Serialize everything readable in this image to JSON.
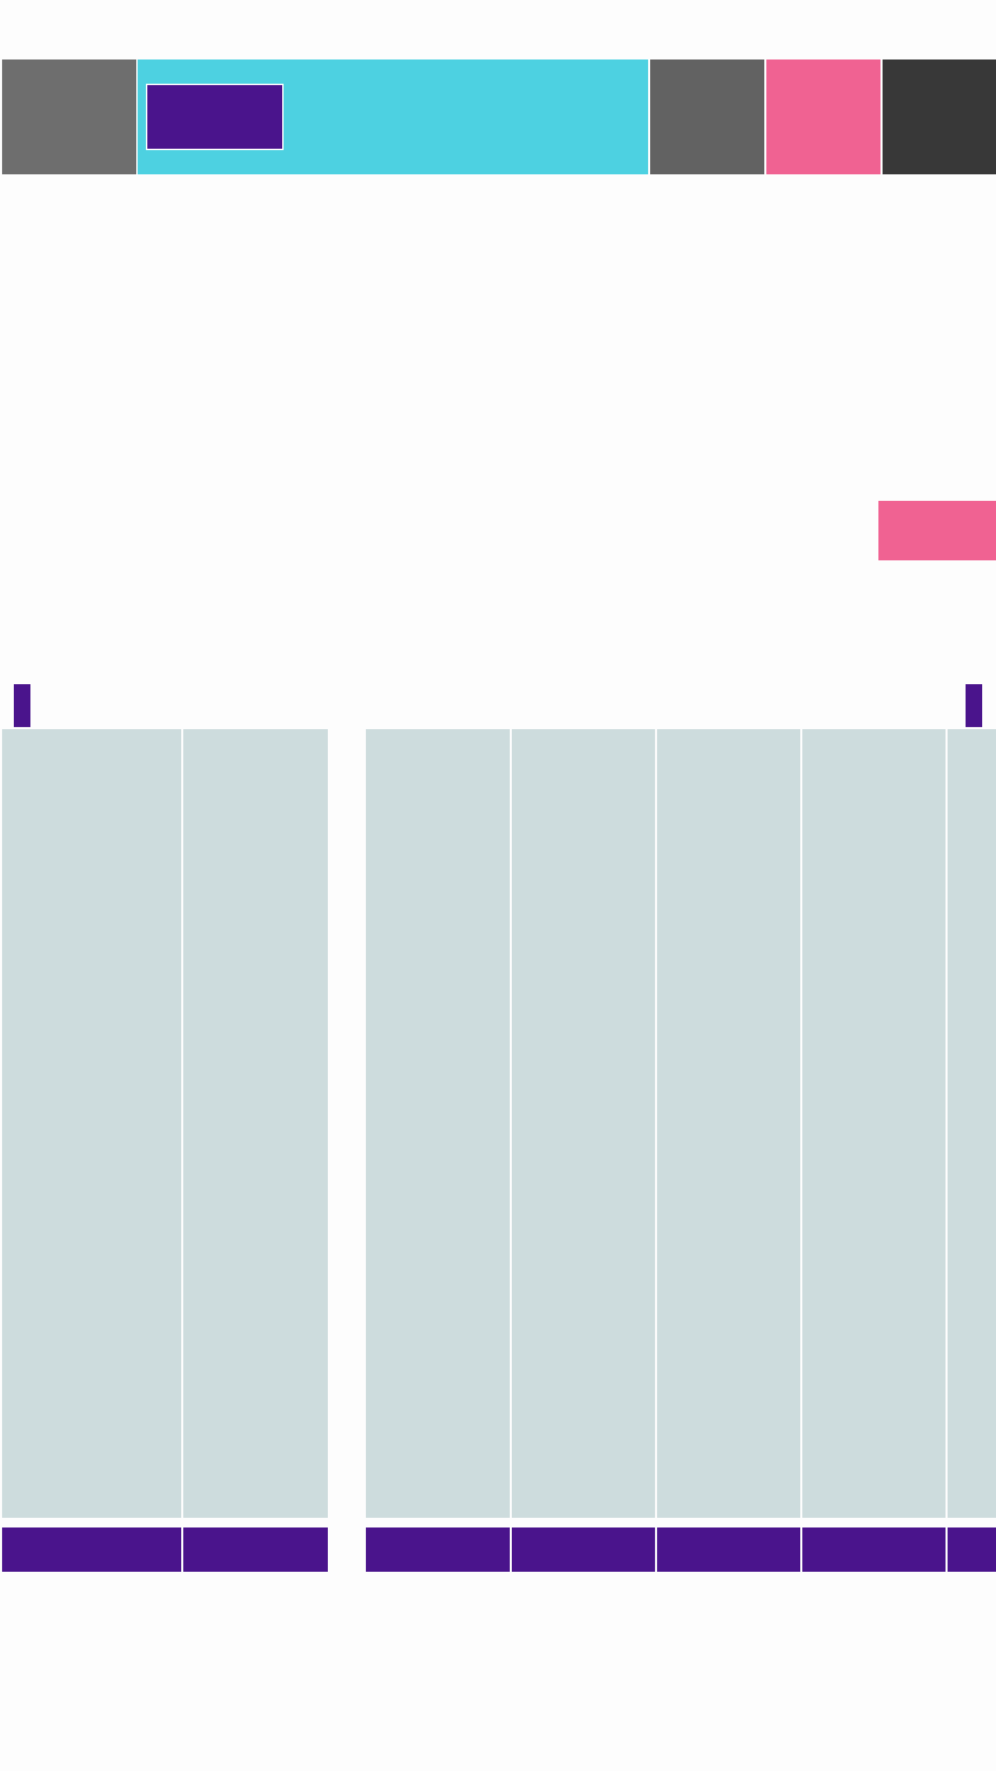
{
  "theme": {
    "background": "#FDFDFD",
    "gray_1": "#6E6E6E",
    "gray_2": "#626262",
    "gray_3": "#383838",
    "cyan": "#4DD1E1",
    "pink": "#F06292",
    "purple": "#4A148C",
    "panel": "#CDDCDD"
  },
  "nav": {
    "tiles": [
      {
        "id": "tile-1",
        "color": "#6E6E6E"
      },
      {
        "id": "hero",
        "color": "#4DD1E1",
        "button_color": "#4A148C"
      },
      {
        "id": "tile-2",
        "color": "#626262"
      },
      {
        "id": "tile-3",
        "color": "#F06292"
      },
      {
        "id": "tile-4",
        "color": "#383838"
      }
    ]
  },
  "fab": {
    "color": "#F06292"
  },
  "carousel": {
    "marker_color": "#4A148C",
    "columns": 7
  }
}
